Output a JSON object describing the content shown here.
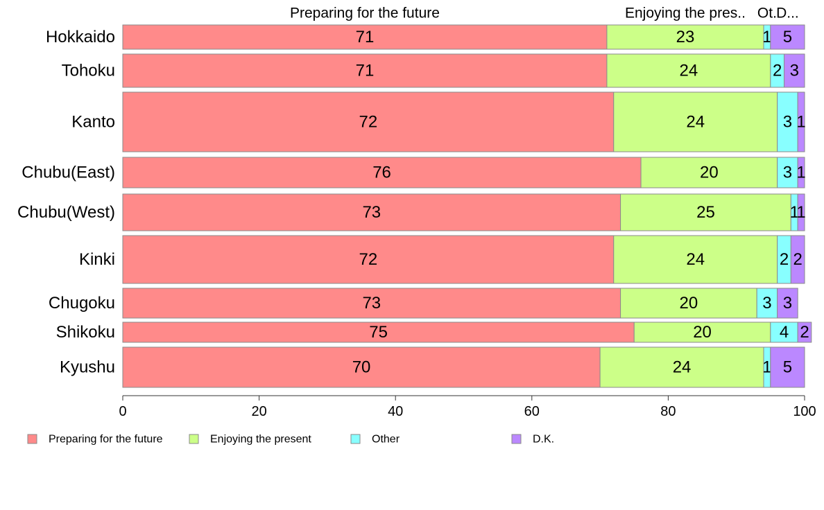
{
  "chart_data": {
    "type": "bar",
    "orientation": "horizontal",
    "stacked": true,
    "categories": [
      "Hokkaido",
      "Tohoku",
      "Kanto",
      "Chubu(East)",
      "Chubu(West)",
      "Kinki",
      "Chugoku",
      "Shikoku",
      "Kyushu"
    ],
    "series": [
      {
        "name": "Preparing for the future",
        "color": "#ff8a8a",
        "values": [
          71,
          71,
          72,
          76,
          73,
          72,
          73,
          75,
          70
        ]
      },
      {
        "name": "Enjoying the present",
        "color": "#ccff88",
        "values": [
          23,
          24,
          24,
          20,
          25,
          24,
          20,
          20,
          24
        ]
      },
      {
        "name": "Other",
        "color": "#88ffff",
        "values": [
          1,
          2,
          3,
          3,
          1,
          2,
          3,
          4,
          1
        ]
      },
      {
        "name": "D.K.",
        "color": "#bb88ff",
        "values": [
          5,
          3,
          1,
          1,
          1,
          2,
          3,
          2,
          5
        ]
      }
    ],
    "top_labels": [
      "Preparing for the future",
      "Enjoying the pres..",
      "Ot.",
      "D..."
    ],
    "xlim": [
      0,
      100
    ],
    "xticks": [
      "0",
      "20",
      "40",
      "60",
      "80",
      "100"
    ],
    "legend_position": "bottom",
    "grid": false,
    "bar_thickness_varies": true
  }
}
